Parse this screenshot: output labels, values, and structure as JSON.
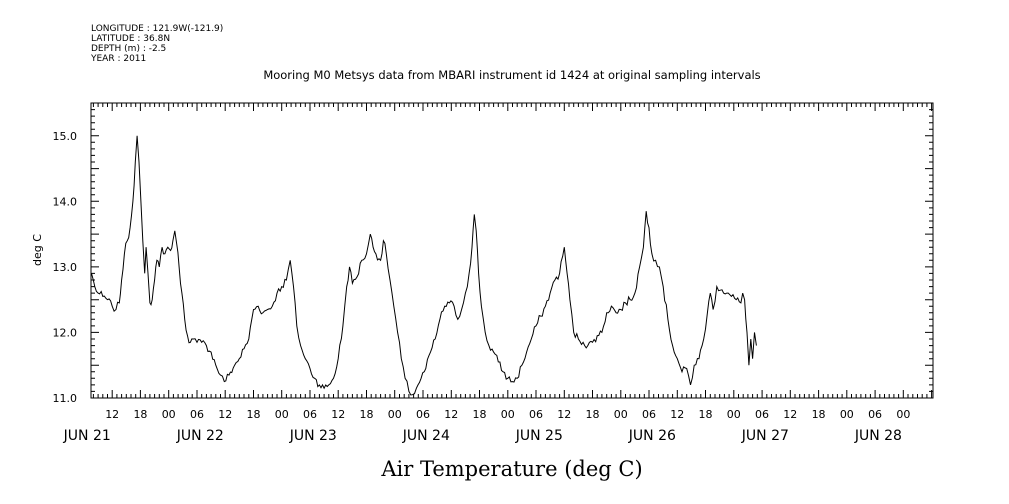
{
  "header": {
    "meta_lines": [
      "LONGITUDE : 121.9W(-121.9)",
      "LATITUDE : 36.8N",
      "DEPTH (m) : -2.5",
      "YEAR : 2011"
    ],
    "title": "Mooring M0 Metsys data from MBARI instrument id 1424 at original sampling intervals"
  },
  "chart_data": {
    "type": "line",
    "title": "Mooring M0 Metsys data from MBARI instrument id 1424 at original sampling intervals",
    "xlabel": "Air Temperature (deg C)",
    "ylabel": "deg C",
    "x_units": "hours since JUN 21 00:00, 2011",
    "xlim": [
      7.5,
      186.3
    ],
    "ylim": [
      11.0,
      15.5
    ],
    "y_ticks": [
      11.0,
      12.0,
      13.0,
      14.0,
      15.0
    ],
    "y_tick_labels": [
      "11.0",
      "12.0",
      "13.0",
      "14.0",
      "15.0"
    ],
    "x_hour_ticks": [
      12,
      18,
      24,
      30,
      36,
      42,
      48,
      54,
      60,
      66,
      72,
      78,
      84,
      90,
      96,
      102,
      108,
      114,
      120,
      126,
      132,
      138,
      144,
      150,
      156,
      162,
      168,
      174,
      180
    ],
    "x_hour_labels": [
      "12",
      "18",
      "00",
      "06",
      "12",
      "18",
      "00",
      "06",
      "12",
      "18",
      "00",
      "06",
      "12",
      "18",
      "00",
      "06",
      "12",
      "18",
      "00",
      "06",
      "12",
      "18",
      "00",
      "06",
      "12",
      "18",
      "00",
      "06",
      "00"
    ],
    "x_day_labels": [
      {
        "x": 0,
        "label": "JUN 21"
      },
      {
        "x": 24,
        "label": "JUN 22"
      },
      {
        "x": 48,
        "label": "JUN 23"
      },
      {
        "x": 72,
        "label": "JUN 24"
      },
      {
        "x": 96,
        "label": "JUN 25"
      },
      {
        "x": 120,
        "label": "JUN 26"
      },
      {
        "x": 144,
        "label": "JUN 27"
      },
      {
        "x": 168,
        "label": "JUN 28"
      }
    ],
    "grid": false,
    "legend": "none",
    "series": [
      {
        "color": "#000000",
        "points": [
          [
            7.6,
            12.9
          ],
          [
            8.3,
            12.7
          ],
          [
            9.0,
            12.6
          ],
          [
            10.0,
            12.55
          ],
          [
            11.0,
            12.5
          ],
          [
            12.0,
            12.4
          ],
          [
            12.8,
            12.35
          ],
          [
            13.5,
            12.45
          ],
          [
            14.0,
            12.8
          ],
          [
            14.6,
            13.2
          ],
          [
            15.2,
            13.4
          ],
          [
            15.8,
            13.6
          ],
          [
            16.4,
            14.0
          ],
          [
            16.9,
            14.6
          ],
          [
            17.3,
            15.0
          ],
          [
            17.7,
            14.6
          ],
          [
            18.1,
            14.0
          ],
          [
            18.5,
            13.4
          ],
          [
            18.9,
            12.9
          ],
          [
            19.2,
            13.3
          ],
          [
            19.6,
            12.9
          ],
          [
            20.0,
            12.45
          ],
          [
            20.5,
            12.5
          ],
          [
            21.0,
            12.8
          ],
          [
            21.5,
            13.1
          ],
          [
            22.0,
            13.0
          ],
          [
            22.6,
            13.3
          ],
          [
            23.2,
            13.2
          ],
          [
            23.8,
            13.3
          ],
          [
            24.4,
            13.25
          ],
          [
            24.9,
            13.4
          ],
          [
            25.3,
            13.55
          ],
          [
            25.7,
            13.35
          ],
          [
            26.2,
            13.0
          ],
          [
            26.8,
            12.6
          ],
          [
            27.4,
            12.2
          ],
          [
            28.0,
            11.95
          ],
          [
            28.6,
            11.85
          ],
          [
            29.2,
            11.9
          ],
          [
            30.0,
            11.85
          ],
          [
            31.0,
            11.85
          ],
          [
            32.0,
            11.8
          ],
          [
            33.0,
            11.7
          ],
          [
            34.0,
            11.5
          ],
          [
            35.0,
            11.35
          ],
          [
            35.8,
            11.25
          ],
          [
            36.8,
            11.35
          ],
          [
            38.0,
            11.5
          ],
          [
            39.0,
            11.6
          ],
          [
            40.0,
            11.75
          ],
          [
            41.0,
            11.9
          ],
          [
            42.0,
            12.35
          ],
          [
            43.0,
            12.4
          ],
          [
            44.0,
            12.3
          ],
          [
            45.0,
            12.35
          ],
          [
            46.0,
            12.4
          ],
          [
            47.0,
            12.6
          ],
          [
            48.0,
            12.7
          ],
          [
            49.0,
            12.8
          ],
          [
            49.8,
            13.1
          ],
          [
            50.5,
            12.7
          ],
          [
            51.2,
            12.1
          ],
          [
            52.0,
            11.8
          ],
          [
            53.0,
            11.6
          ],
          [
            54.0,
            11.45
          ],
          [
            55.0,
            11.3
          ],
          [
            56.0,
            11.2
          ],
          [
            57.0,
            11.15
          ],
          [
            58.0,
            11.2
          ],
          [
            59.0,
            11.3
          ],
          [
            60.0,
            11.6
          ],
          [
            61.0,
            12.1
          ],
          [
            61.8,
            12.7
          ],
          [
            62.4,
            13.0
          ],
          [
            63.0,
            12.75
          ],
          [
            64.0,
            12.85
          ],
          [
            65.0,
            13.1
          ],
          [
            66.0,
            13.2
          ],
          [
            66.8,
            13.5
          ],
          [
            67.4,
            13.3
          ],
          [
            68.0,
            13.2
          ],
          [
            69.0,
            13.1
          ],
          [
            69.6,
            13.4
          ],
          [
            70.2,
            13.2
          ],
          [
            71.0,
            12.8
          ],
          [
            71.8,
            12.4
          ],
          [
            72.6,
            12.0
          ],
          [
            73.4,
            11.6
          ],
          [
            74.2,
            11.3
          ],
          [
            75.0,
            11.1
          ],
          [
            75.8,
            11.05
          ],
          [
            76.6,
            11.15
          ],
          [
            77.6,
            11.3
          ],
          [
            78.6,
            11.45
          ],
          [
            79.6,
            11.7
          ],
          [
            80.6,
            11.9
          ],
          [
            81.6,
            12.2
          ],
          [
            82.6,
            12.4
          ],
          [
            83.6,
            12.45
          ],
          [
            84.6,
            12.4
          ],
          [
            85.4,
            12.2
          ],
          [
            86.2,
            12.35
          ],
          [
            87.0,
            12.6
          ],
          [
            87.8,
            12.9
          ],
          [
            88.4,
            13.3
          ],
          [
            88.9,
            13.8
          ],
          [
            89.3,
            13.55
          ],
          [
            89.8,
            12.9
          ],
          [
            90.4,
            12.4
          ],
          [
            91.2,
            12.0
          ],
          [
            92.0,
            11.8
          ],
          [
            93.0,
            11.7
          ],
          [
            94.0,
            11.55
          ],
          [
            95.0,
            11.4
          ],
          [
            96.0,
            11.3
          ],
          [
            97.0,
            11.25
          ],
          [
            98.0,
            11.3
          ],
          [
            99.0,
            11.5
          ],
          [
            100.0,
            11.7
          ],
          [
            101.0,
            11.9
          ],
          [
            102.0,
            12.1
          ],
          [
            103.0,
            12.25
          ],
          [
            104.0,
            12.4
          ],
          [
            105.0,
            12.6
          ],
          [
            106.0,
            12.8
          ],
          [
            107.0,
            12.9
          ],
          [
            108.0,
            13.3
          ],
          [
            108.6,
            12.9
          ],
          [
            109.2,
            12.5
          ],
          [
            110.0,
            12.0
          ],
          [
            111.0,
            11.9
          ],
          [
            112.0,
            11.85
          ],
          [
            113.0,
            11.8
          ],
          [
            114.0,
            11.85
          ],
          [
            115.0,
            11.95
          ],
          [
            116.0,
            12.0
          ],
          [
            117.0,
            12.3
          ],
          [
            118.0,
            12.4
          ],
          [
            119.0,
            12.3
          ],
          [
            120.0,
            12.35
          ],
          [
            121.0,
            12.45
          ],
          [
            122.0,
            12.5
          ],
          [
            123.0,
            12.6
          ],
          [
            124.0,
            13.0
          ],
          [
            124.8,
            13.3
          ],
          [
            125.4,
            13.85
          ],
          [
            126.0,
            13.6
          ],
          [
            126.6,
            13.2
          ],
          [
            127.4,
            13.1
          ],
          [
            128.2,
            13.0
          ],
          [
            129.0,
            12.7
          ],
          [
            130.0,
            12.2
          ],
          [
            131.0,
            11.8
          ],
          [
            132.0,
            11.6
          ],
          [
            133.0,
            11.4
          ],
          [
            134.0,
            11.45
          ],
          [
            134.8,
            11.2
          ],
          [
            135.6,
            11.5
          ],
          [
            136.6,
            11.6
          ],
          [
            137.6,
            11.9
          ],
          [
            138.4,
            12.3
          ],
          [
            139.0,
            12.6
          ],
          [
            139.6,
            12.35
          ],
          [
            140.4,
            12.7
          ],
          [
            141.5,
            12.65
          ],
          [
            142.5,
            12.6
          ],
          [
            143.5,
            12.55
          ],
          [
            144.5,
            12.5
          ],
          [
            145.5,
            12.45
          ],
          [
            145.9,
            12.6
          ],
          [
            146.3,
            12.5
          ],
          [
            146.8,
            12.0
          ],
          [
            147.2,
            11.5
          ],
          [
            147.6,
            11.9
          ],
          [
            148.0,
            11.6
          ],
          [
            148.4,
            12.0
          ],
          [
            148.8,
            11.8
          ]
        ]
      }
    ]
  }
}
